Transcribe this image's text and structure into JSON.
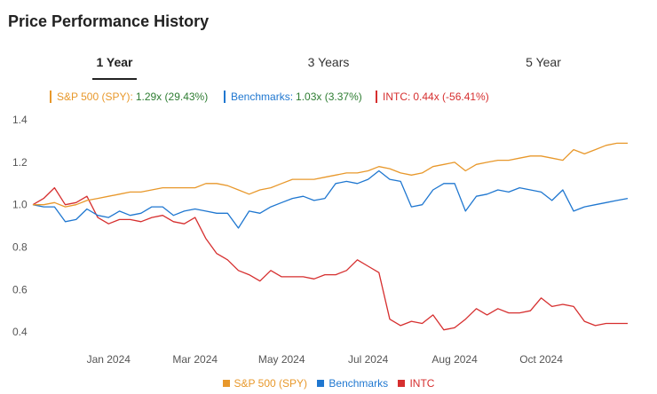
{
  "page": {
    "title": "Price Performance History"
  },
  "tabs": [
    {
      "label": "1 Year",
      "active": true
    },
    {
      "label": "3 Years",
      "active": false
    },
    {
      "label": "5 Year",
      "active": false
    }
  ],
  "summary": {
    "spy": {
      "label": "S&P 500 (SPY):",
      "value": "1.29x (29.43%)",
      "color": "#e8982b",
      "value_color": "#2e7d32"
    },
    "bench": {
      "label": "Benchmarks:",
      "value": "1.03x (3.37%)",
      "color": "#1f77d0",
      "value_color": "#2e7d32"
    },
    "intc": {
      "label": "INTC:",
      "value": "0.44x (-56.41%)",
      "color": "#d62f2f",
      "value_color": "#d62f2f"
    }
  },
  "legend": [
    {
      "label": "S&P 500 (SPY)",
      "color": "#e8982b"
    },
    {
      "label": "Benchmarks",
      "color": "#1f77d0"
    },
    {
      "label": "INTC",
      "color": "#d62f2f"
    }
  ],
  "chart_data": {
    "type": "line",
    "x_ticks": [
      "Jan 2024",
      "Mar 2024",
      "May 2024",
      "Jul 2024",
      "Aug 2024",
      "Oct 2024"
    ],
    "x_tick_index": [
      7,
      15,
      23,
      31,
      39,
      47
    ],
    "y_ticks": [
      0.4,
      0.6,
      0.8,
      1.0,
      1.2,
      1.4
    ],
    "ylim": [
      0.35,
      1.43
    ],
    "grid": false,
    "legend_position": "bottom",
    "series": [
      {
        "name": "S&P 500 (SPY)",
        "color": "#e8982b",
        "values": [
          1.0,
          1.0,
          1.01,
          0.99,
          1.0,
          1.02,
          1.03,
          1.04,
          1.05,
          1.06,
          1.06,
          1.07,
          1.08,
          1.08,
          1.08,
          1.08,
          1.1,
          1.1,
          1.09,
          1.07,
          1.05,
          1.07,
          1.08,
          1.1,
          1.12,
          1.12,
          1.12,
          1.13,
          1.14,
          1.15,
          1.15,
          1.16,
          1.18,
          1.17,
          1.15,
          1.14,
          1.15,
          1.18,
          1.19,
          1.2,
          1.16,
          1.19,
          1.2,
          1.21,
          1.21,
          1.22,
          1.23,
          1.23,
          1.22,
          1.21,
          1.26,
          1.24,
          1.26,
          1.28,
          1.29,
          1.29
        ]
      },
      {
        "name": "Benchmarks",
        "color": "#1f77d0",
        "values": [
          1.0,
          0.99,
          0.99,
          0.92,
          0.93,
          0.98,
          0.95,
          0.94,
          0.97,
          0.95,
          0.96,
          0.99,
          0.99,
          0.95,
          0.97,
          0.98,
          0.97,
          0.96,
          0.96,
          0.89,
          0.97,
          0.96,
          0.99,
          1.01,
          1.03,
          1.04,
          1.02,
          1.03,
          1.1,
          1.11,
          1.1,
          1.12,
          1.16,
          1.12,
          1.11,
          0.99,
          1.0,
          1.07,
          1.1,
          1.1,
          0.97,
          1.04,
          1.05,
          1.07,
          1.06,
          1.08,
          1.07,
          1.06,
          1.02,
          1.07,
          0.97,
          0.99,
          1.0,
          1.01,
          1.02,
          1.03
        ]
      },
      {
        "name": "INTC",
        "color": "#d62f2f",
        "values": [
          1.0,
          1.03,
          1.08,
          1.0,
          1.01,
          1.04,
          0.94,
          0.91,
          0.93,
          0.93,
          0.92,
          0.94,
          0.95,
          0.92,
          0.91,
          0.94,
          0.84,
          0.77,
          0.74,
          0.69,
          0.67,
          0.64,
          0.69,
          0.66,
          0.66,
          0.66,
          0.65,
          0.67,
          0.67,
          0.69,
          0.74,
          0.71,
          0.68,
          0.46,
          0.43,
          0.45,
          0.44,
          0.48,
          0.41,
          0.42,
          0.46,
          0.51,
          0.48,
          0.51,
          0.49,
          0.49,
          0.5,
          0.56,
          0.52,
          0.53,
          0.52,
          0.45,
          0.43,
          0.44,
          0.44,
          0.44
        ]
      }
    ]
  }
}
